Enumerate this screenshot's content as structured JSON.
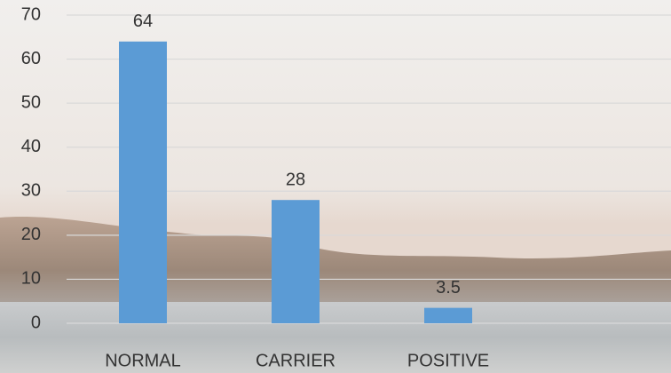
{
  "chart_data": {
    "type": "bar",
    "categories": [
      "NORMAL",
      "CARRIER",
      "POSITIVE"
    ],
    "values": [
      64,
      28,
      3.5
    ],
    "color": "#5b9bd5",
    "ylim": [
      0,
      70
    ],
    "yticks": [
      0,
      10,
      20,
      30,
      40,
      50,
      60,
      70
    ],
    "grid": true,
    "data_labels": true
  }
}
